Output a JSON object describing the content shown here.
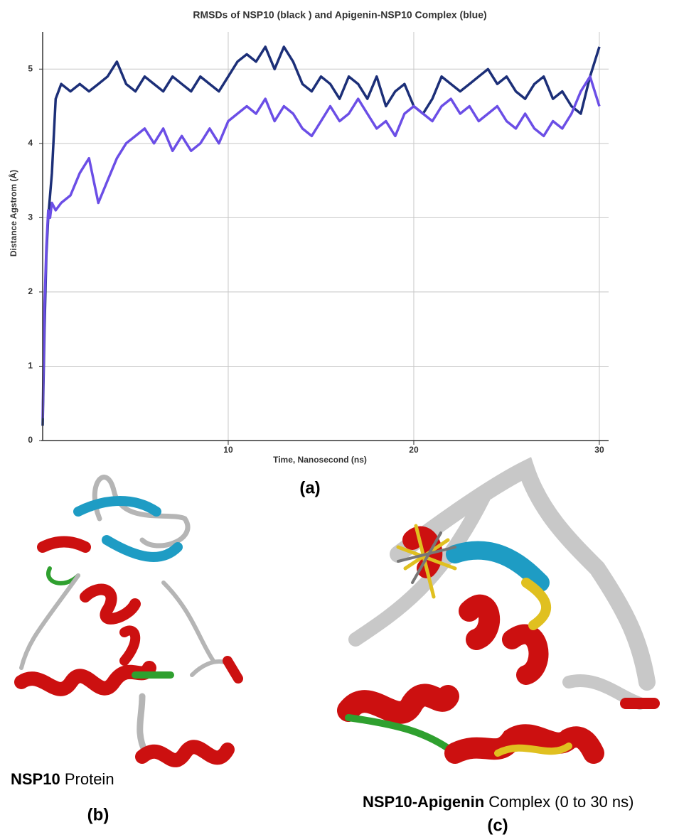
{
  "chart_data": {
    "type": "line",
    "title": "RMSDs of NSP10 (black ) and Apigenin-NSP10 Complex (blue)",
    "x_label": "Time, Nanosecond (ns)",
    "y_label": "Distance Agstrom (Å)",
    "x": [
      0,
      0.1,
      0.2,
      0.3,
      0.4,
      0.5,
      0.7,
      1,
      1.5,
      2,
      2.5,
      3,
      3.5,
      4,
      4.5,
      5,
      5.5,
      6,
      6.5,
      7,
      7.5,
      8,
      8.5,
      9,
      9.5,
      10,
      10.5,
      11,
      11.5,
      12,
      12.5,
      13,
      13.5,
      14,
      14.5,
      15,
      15.5,
      16,
      16.5,
      17,
      17.5,
      18,
      18.5,
      19,
      19.5,
      20,
      20.5,
      21,
      21.5,
      22,
      22.5,
      23,
      23.5,
      24,
      24.5,
      25,
      25.5,
      26,
      26.5,
      27,
      27.5,
      28,
      28.5,
      29,
      29.5,
      30
    ],
    "series": [
      {
        "color": "#1c2f78",
        "values": [
          0.2,
          1.5,
          2.5,
          3.0,
          3.3,
          3.6,
          4.6,
          4.8,
          4.7,
          4.8,
          4.7,
          4.8,
          4.9,
          5.1,
          4.8,
          4.7,
          4.9,
          4.8,
          4.7,
          4.9,
          4.8,
          4.7,
          4.9,
          4.8,
          4.7,
          4.9,
          5.1,
          5.2,
          5.1,
          5.3,
          5.0,
          5.3,
          5.1,
          4.8,
          4.7,
          4.9,
          4.8,
          4.6,
          4.9,
          4.8,
          4.6,
          4.9,
          4.5,
          4.7,
          4.8,
          4.5,
          4.4,
          4.6,
          4.9,
          4.8,
          4.7,
          4.8,
          4.9,
          5.0,
          4.8,
          4.9,
          4.7,
          4.6,
          4.8,
          4.9,
          4.6,
          4.7,
          4.5,
          4.4,
          4.9,
          5.3
        ]
      },
      {
        "color": "#6b4ee6",
        "values": [
          0.3,
          1.8,
          2.6,
          3.1,
          3.0,
          3.2,
          3.1,
          3.2,
          3.3,
          3.6,
          3.8,
          3.2,
          3.5,
          3.8,
          4.0,
          4.1,
          4.2,
          4.0,
          4.2,
          3.9,
          4.1,
          3.9,
          4.0,
          4.2,
          4.0,
          4.3,
          4.4,
          4.5,
          4.4,
          4.6,
          4.3,
          4.5,
          4.4,
          4.2,
          4.1,
          4.3,
          4.5,
          4.3,
          4.4,
          4.6,
          4.4,
          4.2,
          4.3,
          4.1,
          4.4,
          4.5,
          4.4,
          4.3,
          4.5,
          4.6,
          4.4,
          4.5,
          4.3,
          4.4,
          4.5,
          4.3,
          4.2,
          4.4,
          4.2,
          4.1,
          4.3,
          4.2,
          4.4,
          4.7,
          4.9,
          4.5
        ]
      }
    ],
    "xlim": [
      0,
      30.5
    ],
    "ylim": [
      0,
      5.5
    ],
    "xticks": [
      10,
      20,
      30
    ],
    "yticks": [
      0,
      1,
      2,
      3,
      4,
      5
    ],
    "grid": true
  },
  "figure_labels": {
    "panel_a": "(a)",
    "caption_b_bold": "NSP10",
    "caption_b_rest": "Protein",
    "panel_b": "(b)",
    "caption_c_bold": "NSP10-Apigenin",
    "caption_c_rest": "Complex (0 to 30 ns)",
    "panel_c": "(c)"
  }
}
